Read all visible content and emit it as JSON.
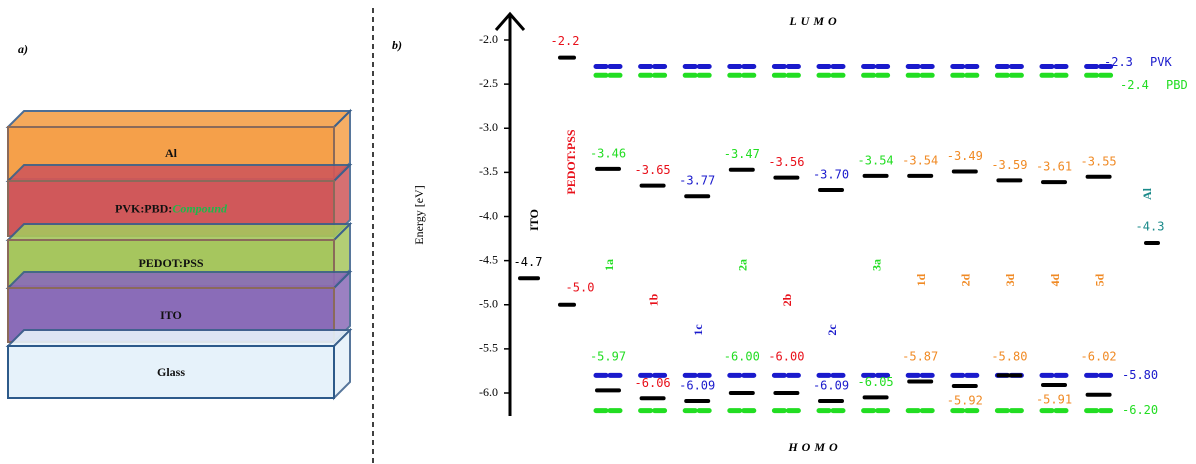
{
  "panel_a": {
    "label": "a)",
    "layers": [
      {
        "name": "Al",
        "color": "#f5a04a"
      },
      {
        "name": "PVK:PBD:",
        "extra": "Compound",
        "color": "#d0585a"
      },
      {
        "name": "PEDOT:PSS",
        "color": "#a6c65e"
      },
      {
        "name": "ITO",
        "color": "#8a6cb8"
      },
      {
        "name": "Glass",
        "color": "#e6f2fa"
      }
    ]
  },
  "panel_b": {
    "label": "b)",
    "axis_label": "Energy [eV]",
    "lumo": "LUMO",
    "homo": "HOMO",
    "ylim": [
      -2.0,
      -6.0
    ],
    "yticks": [
      {
        "value": -2.0,
        "label": "-2.0"
      },
      {
        "value": -2.5,
        "label": "-2.5"
      },
      {
        "value": -3.0,
        "label": "-3.0"
      },
      {
        "value": -3.5,
        "label": "-3.5"
      },
      {
        "value": -4.0,
        "label": "-4.0"
      },
      {
        "value": -4.5,
        "label": "-4.5"
      },
      {
        "value": -5.0,
        "label": "-5.0"
      },
      {
        "value": -5.5,
        "label": "-5.5"
      },
      {
        "value": -6.0,
        "label": "-6.0"
      }
    ],
    "ito": {
      "name": "ITO",
      "value": -4.7,
      "value_label": "-4.7"
    },
    "pedot": {
      "name": "PEDOT:PSS",
      "lumo": -2.2,
      "lumo_label": "-2.2",
      "homo": -5.0,
      "homo_label": "-5.0",
      "color": "#e8101a"
    },
    "al": {
      "name": "Al",
      "value": -4.3,
      "value_label": "-4.3",
      "color": "#1a8a8a"
    },
    "pvk": {
      "name": "PVK",
      "lumo": -2.3,
      "lumo_label": "-2.3",
      "homo": -5.8,
      "homo_label": "-5.80",
      "color": "#1a1acc"
    },
    "pbd": {
      "name": "PBD",
      "lumo": -2.4,
      "lumo_label": "-2.4",
      "homo": -6.2,
      "homo_label": "-6.20",
      "color": "#22dd22"
    },
    "compounds": [
      {
        "name": "1a",
        "color": "#22dd22",
        "lumo": -3.46,
        "lumo_label": "-3.46",
        "homo": -5.97,
        "homo_label": "-5.97"
      },
      {
        "name": "1b",
        "color": "#e8101a",
        "lumo": -3.65,
        "lumo_label": "-3.65",
        "homo": -6.06,
        "homo_label": "-6.06"
      },
      {
        "name": "1c",
        "color": "#1a1acc",
        "lumo": -3.77,
        "lumo_label": "-3.77",
        "homo": -6.09,
        "homo_label": "-6.09"
      },
      {
        "name": "2a",
        "color": "#22dd22",
        "lumo": -3.47,
        "lumo_label": "-3.47",
        "homo": -6.0,
        "homo_label": "-6.00"
      },
      {
        "name": "2b",
        "color": "#e8101a",
        "lumo": -3.56,
        "lumo_label": "-3.56",
        "homo": -6.0,
        "homo_label": "-6.00"
      },
      {
        "name": "2c",
        "color": "#1a1acc",
        "lumo": -3.7,
        "lumo_label": "-3.70",
        "homo": -6.09,
        "homo_label": "-6.09"
      },
      {
        "name": "3a",
        "color": "#22dd22",
        "lumo": -3.54,
        "lumo_label": "-3.54",
        "homo": -6.05,
        "homo_label": "-6.05"
      },
      {
        "name": "1d",
        "color": "#f08a24",
        "lumo": -3.54,
        "lumo_label": "-3.54",
        "homo": -5.87,
        "homo_label": "-5.87"
      },
      {
        "name": "2d",
        "color": "#f08a24",
        "lumo": -3.49,
        "lumo_label": "-3.49",
        "homo": -5.92,
        "homo_label": "-5.92"
      },
      {
        "name": "3d",
        "color": "#f08a24",
        "lumo": -3.59,
        "lumo_label": "-3.59",
        "homo": -5.8,
        "homo_label": "-5.80"
      },
      {
        "name": "4d",
        "color": "#f08a24",
        "lumo": -3.61,
        "lumo_label": "-3.61",
        "homo": -5.91,
        "homo_label": "-5.91"
      },
      {
        "name": "5d",
        "color": "#f08a24",
        "lumo": -3.55,
        "lumo_label": "-3.55",
        "homo": -6.02,
        "homo_label": "-6.02"
      }
    ]
  }
}
